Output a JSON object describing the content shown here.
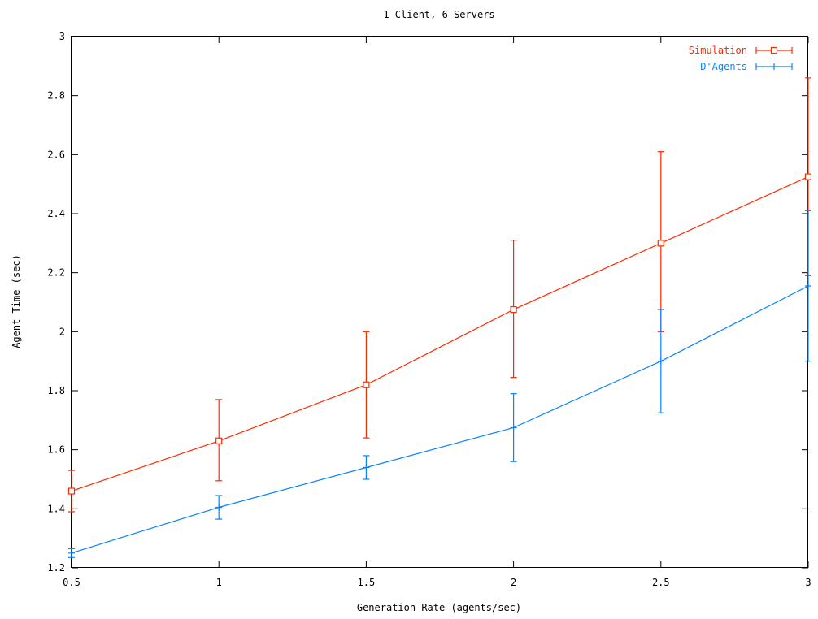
{
  "chart_data": {
    "type": "line",
    "title": "1 Client, 6 Servers",
    "xlabel": "Generation Rate (agents/sec)",
    "ylabel": "Agent Time (sec)",
    "xlim": [
      0.5,
      3
    ],
    "ylim": [
      1.2,
      3
    ],
    "x_ticks": [
      "0.5",
      "1",
      "1.5",
      "2",
      "2.5",
      "3"
    ],
    "y_ticks": [
      "1.2",
      "1.4",
      "1.6",
      "1.8",
      "2",
      "2.2",
      "2.4",
      "2.6",
      "2.8",
      "3"
    ],
    "grid": false,
    "legend_position": "top-right",
    "series": [
      {
        "name": "Simulation",
        "color": "#ff2a00",
        "marker": "square",
        "points": [
          {
            "x": 0.5,
            "y": 1.46,
            "ylow": 1.39,
            "yhigh": 1.53
          },
          {
            "x": 1.0,
            "y": 1.63,
            "ylow": 1.495,
            "yhigh": 1.77
          },
          {
            "x": 1.5,
            "y": 1.82,
            "ylow": 1.64,
            "yhigh": 2.0
          },
          {
            "x": 2.0,
            "y": 2.075,
            "ylow": 1.845,
            "yhigh": 2.31
          },
          {
            "x": 2.5,
            "y": 2.3,
            "ylow": 2.0,
            "yhigh": 2.61
          },
          {
            "x": 3.0,
            "y": 2.525,
            "ylow": 2.19,
            "yhigh": 2.86
          }
        ]
      },
      {
        "name": "D'Agents",
        "color": "#0a82ff",
        "marker": "plus",
        "points": [
          {
            "x": 0.5,
            "y": 1.25,
            "ylow": 1.235,
            "yhigh": 1.265
          },
          {
            "x": 1.0,
            "y": 1.405,
            "ylow": 1.365,
            "yhigh": 1.445
          },
          {
            "x": 1.5,
            "y": 1.54,
            "ylow": 1.5,
            "yhigh": 1.58
          },
          {
            "x": 2.0,
            "y": 1.675,
            "ylow": 1.56,
            "yhigh": 1.79
          },
          {
            "x": 2.5,
            "y": 1.9,
            "ylow": 1.725,
            "yhigh": 2.075
          },
          {
            "x": 3.0,
            "y": 2.155,
            "ylow": 1.9,
            "yhigh": 2.41
          }
        ]
      }
    ]
  }
}
